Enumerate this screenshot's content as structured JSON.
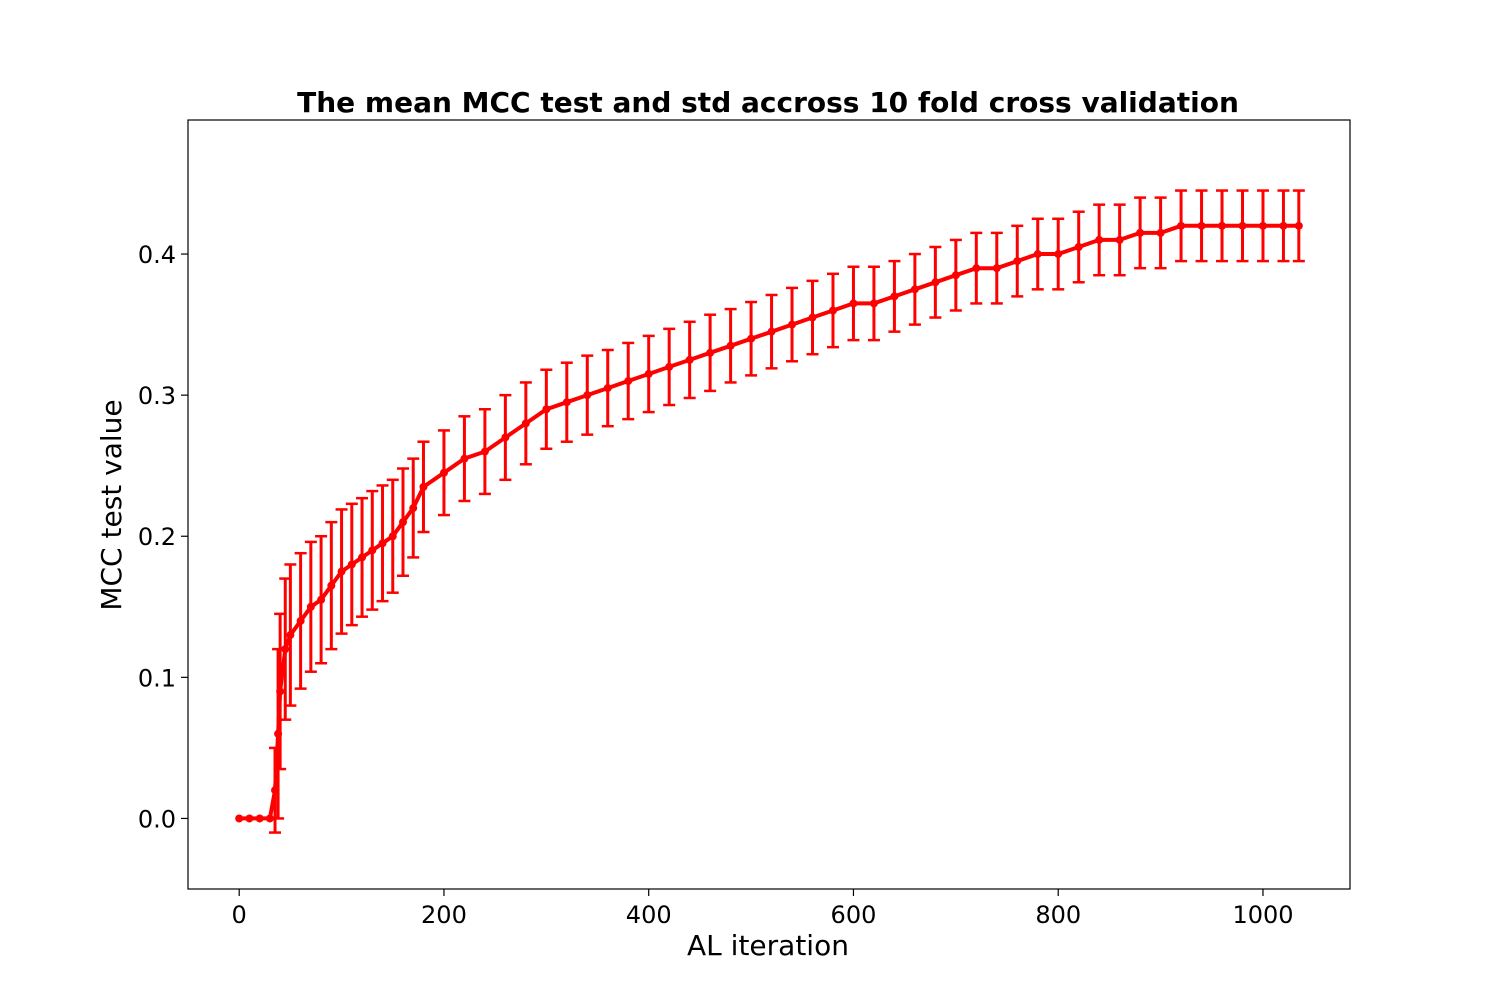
{
  "chart_data": {
    "type": "line",
    "title": "The mean MCC test and std accross 10 fold cross validation",
    "xlabel": "AL iteration",
    "ylabel": "MCC test value",
    "xlim": [
      -50,
      1085
    ],
    "ylim": [
      -0.05,
      0.495
    ],
    "x_ticks": [
      0,
      200,
      400,
      600,
      800,
      1000
    ],
    "y_ticks": [
      0.0,
      0.1,
      0.2,
      0.3,
      0.4
    ],
    "x_tick_labels": [
      "0",
      "200",
      "400",
      "600",
      "800",
      "1000"
    ],
    "y_tick_labels": [
      "0.0",
      "0.1",
      "0.2",
      "0.3",
      "0.4"
    ],
    "grid": false,
    "legend": "none",
    "series": [
      {
        "color": "#ff0000",
        "error_bars": true,
        "x": [
          0,
          10,
          20,
          30,
          35,
          38,
          40,
          45,
          50,
          60,
          70,
          80,
          90,
          100,
          110,
          120,
          130,
          140,
          150,
          160,
          170,
          180,
          200,
          220,
          240,
          260,
          280,
          300,
          320,
          340,
          360,
          380,
          400,
          420,
          440,
          460,
          480,
          500,
          520,
          540,
          560,
          580,
          600,
          620,
          640,
          660,
          680,
          700,
          720,
          740,
          760,
          780,
          800,
          820,
          840,
          860,
          880,
          900,
          920,
          940,
          960,
          980,
          1000,
          1020,
          1035
        ],
        "y": [
          0.0,
          0.0,
          0.0,
          0.0,
          0.02,
          0.06,
          0.09,
          0.12,
          0.13,
          0.14,
          0.15,
          0.155,
          0.165,
          0.175,
          0.18,
          0.185,
          0.19,
          0.195,
          0.2,
          0.21,
          0.22,
          0.235,
          0.245,
          0.255,
          0.26,
          0.27,
          0.28,
          0.29,
          0.295,
          0.3,
          0.305,
          0.31,
          0.315,
          0.32,
          0.325,
          0.33,
          0.335,
          0.34,
          0.345,
          0.35,
          0.355,
          0.36,
          0.365,
          0.365,
          0.37,
          0.375,
          0.38,
          0.385,
          0.39,
          0.39,
          0.395,
          0.4,
          0.4,
          0.405,
          0.41,
          0.41,
          0.415,
          0.415,
          0.42,
          0.42,
          0.42,
          0.42,
          0.42,
          0.42,
          0.42
        ],
        "yerr": [
          0.0,
          0.0,
          0.0,
          0.0,
          0.03,
          0.06,
          0.055,
          0.05,
          0.05,
          0.048,
          0.046,
          0.045,
          0.045,
          0.044,
          0.043,
          0.042,
          0.042,
          0.041,
          0.04,
          0.038,
          0.035,
          0.032,
          0.03,
          0.03,
          0.03,
          0.03,
          0.029,
          0.028,
          0.028,
          0.028,
          0.027,
          0.027,
          0.027,
          0.027,
          0.027,
          0.027,
          0.026,
          0.026,
          0.026,
          0.026,
          0.026,
          0.026,
          0.026,
          0.026,
          0.025,
          0.025,
          0.025,
          0.025,
          0.025,
          0.025,
          0.025,
          0.025,
          0.025,
          0.025,
          0.025,
          0.025,
          0.025,
          0.025,
          0.025,
          0.025,
          0.025,
          0.025,
          0.025,
          0.025,
          0.025
        ]
      }
    ]
  }
}
